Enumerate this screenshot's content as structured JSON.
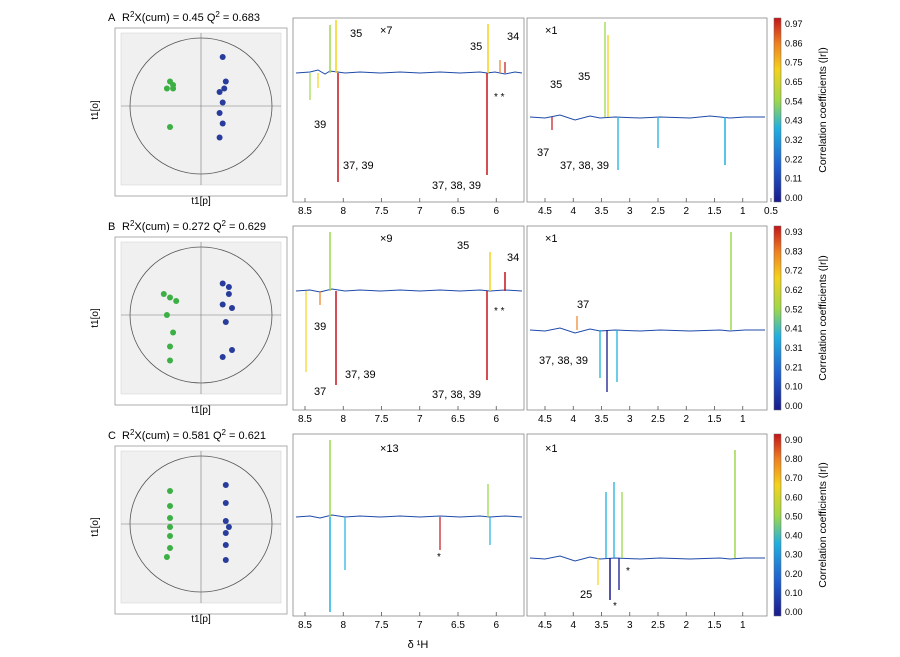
{
  "figure": {
    "x_axis_label": "δ ¹H",
    "colorbar_label": "Correlation coefficients (|r|)",
    "colors": {
      "cb_low": "#1a1a8c",
      "cb_mid1": "#20b0e0",
      "cb_mid2": "#9ed84a",
      "cb_mid3": "#f5d21c",
      "cb_high": "#c4141a",
      "green": "#3cb044",
      "blue": "#283c9c"
    }
  },
  "rows": [
    {
      "panel": "A",
      "title_prefix": "R",
      "title_sup": "2",
      "title_mid": "X(cum) = 0.45   Q",
      "title_sup2": "2",
      "title_end": " = 0.683",
      "score_ylabel": "t1[o]",
      "score_xlabel": "t1[p]",
      "score_points": {
        "green": [
          [
            -22,
            10
          ],
          [
            -20,
            14
          ],
          [
            -18,
            12
          ],
          [
            -18,
            10
          ],
          [
            -20,
            -12
          ]
        ],
        "blue": [
          [
            14,
            28
          ],
          [
            16,
            14
          ],
          [
            15,
            10
          ],
          [
            12,
            8
          ],
          [
            14,
            2
          ],
          [
            12,
            -4
          ],
          [
            14,
            -10
          ],
          [
            12,
            -18
          ]
        ]
      },
      "left_scale": "×7",
      "right_scale": "×1",
      "left_ticks": [
        "8.5",
        "8",
        "7.5",
        "7",
        "6.5",
        "6"
      ],
      "right_ticks": [
        "4.5",
        "4",
        "3.5",
        "3",
        "2.5",
        "2",
        "1.5",
        "1",
        "0.5"
      ],
      "left_annotations": [
        "35",
        "39",
        "37, 39",
        "35",
        "34",
        "37, 38, 39",
        "* *"
      ],
      "right_annotations": [
        "35",
        "35",
        "37",
        "37, 38, 39"
      ],
      "colorbar_ticks": [
        "0.97",
        "0.86",
        "0.75",
        "0.65",
        "0.54",
        "0.43",
        "0.32",
        "0.22",
        "0.11",
        "0.00"
      ]
    },
    {
      "panel": "B",
      "title_prefix": "R",
      "title_sup": "2",
      "title_mid": "X(cum) = 0.272   Q",
      "title_sup2": "2",
      "title_end": " = 0.629",
      "score_ylabel": "t1[o]",
      "score_xlabel": "t1[p]",
      "score_points": {
        "green": [
          [
            -24,
            12
          ],
          [
            -20,
            10
          ],
          [
            -16,
            8
          ],
          [
            -22,
            0
          ],
          [
            -18,
            -10
          ],
          [
            -20,
            -18
          ],
          [
            -20,
            -26
          ]
        ],
        "blue": [
          [
            14,
            18
          ],
          [
            18,
            16
          ],
          [
            18,
            12
          ],
          [
            14,
            6
          ],
          [
            20,
            4
          ],
          [
            16,
            -4
          ],
          [
            20,
            -20
          ],
          [
            14,
            -24
          ]
        ]
      },
      "left_scale": "×9",
      "right_scale": "×1",
      "left_ticks": [
        "8.5",
        "8",
        "7.5",
        "7",
        "6.5",
        "6"
      ],
      "right_ticks": [
        "4.5",
        "4",
        "3.5",
        "3",
        "2.5",
        "2",
        "1.5",
        "1"
      ],
      "left_annotations": [
        "35",
        "34",
        "39",
        "37",
        "37, 39",
        "37, 38, 39",
        "* *"
      ],
      "right_annotations": [
        "37",
        "37, 38, 39"
      ],
      "colorbar_ticks": [
        "0.93",
        "0.83",
        "0.72",
        "0.62",
        "0.52",
        "0.41",
        "0.31",
        "0.21",
        "0.10",
        "0.00"
      ]
    },
    {
      "panel": "C",
      "title_prefix": "R",
      "title_sup": "2",
      "title_mid": "X(cum) = 0.581   Q",
      "title_sup2": "2",
      "title_end": " = 0.621",
      "score_ylabel": "t1[o]",
      "score_xlabel": "t1[p]",
      "score_points": {
        "green": [
          [
            -20,
            22
          ],
          [
            -20,
            12
          ],
          [
            -20,
            4
          ],
          [
            -20,
            -2
          ],
          [
            -20,
            -8
          ],
          [
            -20,
            -16
          ],
          [
            -22,
            -22
          ]
        ],
        "blue": [
          [
            16,
            26
          ],
          [
            16,
            14
          ],
          [
            16,
            2
          ],
          [
            18,
            -2
          ],
          [
            16,
            -6
          ],
          [
            16,
            -14
          ],
          [
            16,
            -24
          ]
        ]
      },
      "left_scale": "×13",
      "right_scale": "×1",
      "left_ticks": [
        "8.5",
        "8",
        "7.5",
        "7",
        "6.5",
        "6"
      ],
      "right_ticks": [
        "4.5",
        "4",
        "3.5",
        "3",
        "2.5",
        "2",
        "1.5",
        "1"
      ],
      "left_annotations": [
        "*"
      ],
      "right_annotations": [
        "25",
        "*",
        "*"
      ],
      "colorbar_ticks": [
        "0.90",
        "0.80",
        "0.70",
        "0.60",
        "0.50",
        "0.40",
        "0.30",
        "0.20",
        "0.10",
        "0.00"
      ]
    }
  ]
}
